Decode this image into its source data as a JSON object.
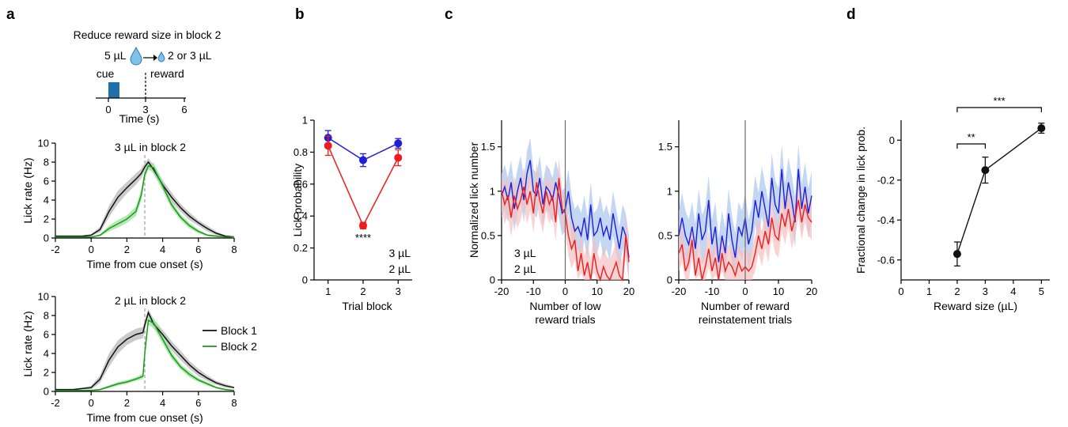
{
  "panel_letters": [
    "a",
    "b",
    "c",
    "d"
  ],
  "colors": {
    "black": "#111111",
    "green": "#1a9a1a",
    "blue": "#1f1fd6",
    "red": "#ee1c1c",
    "cue_box": "#1f6fad",
    "band_gray": "#bdbdbd",
    "band_green": "#9ee39e",
    "band_blue": "#a9c4ec",
    "band_red": "#f7c1c1"
  },
  "schematic": {
    "title": "Reduce reward size in block 2",
    "from_label": "5 µL",
    "to_label": "2 or 3 µL",
    "cue_label": "cue",
    "reward_label": "reward",
    "xlabel": "Time (s)",
    "ticks": [
      "0",
      "3",
      "6"
    ],
    "icon": "water-drop-icon"
  },
  "chart_data": [
    {
      "id": "a-top",
      "type": "line",
      "title": "3 µL in block 2",
      "title_color": "blue",
      "xlabel": "Time from cue onset (s)",
      "ylabel": "Lick rate (Hz)",
      "xlim": [
        -2,
        8
      ],
      "ylim": [
        0,
        10
      ],
      "xticks": [
        "-2",
        "0",
        "2",
        "4",
        "6",
        "8"
      ],
      "yticks": [
        "0",
        "2",
        "4",
        "6",
        "8",
        "10"
      ],
      "x": [
        -2,
        -1.5,
        -1,
        -0.5,
        0,
        0.5,
        1,
        1.5,
        2,
        2.5,
        2.8,
        3,
        3.2,
        3.5,
        4,
        4.5,
        5,
        5.5,
        6,
        6.5,
        7,
        7.5,
        8
      ],
      "series": [
        {
          "color": "black",
          "band": "band_gray",
          "values": [
            0.2,
            0.2,
            0.2,
            0.2,
            0.3,
            0.9,
            2.8,
            4.3,
            5.3,
            6.2,
            6.8,
            7.5,
            8.0,
            7.2,
            5.6,
            4.3,
            3.2,
            2.3,
            1.6,
            1.0,
            0.5,
            0.2,
            0.1
          ],
          "err": [
            0,
            0.05,
            0.05,
            0.05,
            0.1,
            0.3,
            0.6,
            0.7,
            0.6,
            0.6,
            0.5,
            0.4,
            0.4,
            0.5,
            0.5,
            0.5,
            0.4,
            0.4,
            0.3,
            0.3,
            0.2,
            0.1,
            0.1
          ]
        },
        {
          "color": "green",
          "band": "band_green",
          "values": [
            0.1,
            0.1,
            0.1,
            0.1,
            0.1,
            0.3,
            1.0,
            1.5,
            2.0,
            2.8,
            4.5,
            6.7,
            7.6,
            7.4,
            5.5,
            3.5,
            2.2,
            1.3,
            0.7,
            0.3,
            0.2,
            0.1,
            0.1
          ],
          "err": [
            0,
            0.05,
            0.05,
            0.05,
            0.05,
            0.1,
            0.3,
            0.4,
            0.4,
            0.5,
            0.6,
            0.5,
            0.4,
            0.5,
            0.5,
            0.4,
            0.3,
            0.3,
            0.2,
            0.1,
            0.1,
            0.05,
            0.05
          ]
        }
      ]
    },
    {
      "id": "a-bottom",
      "type": "line",
      "title": "2 µL in block 2",
      "title_color": "red",
      "xlabel": "Time from cue onset (s)",
      "ylabel": "Lick rate (Hz)",
      "xlim": [
        -2,
        8
      ],
      "ylim": [
        0,
        10
      ],
      "xticks": [
        "-2",
        "0",
        "2",
        "4",
        "6",
        "8"
      ],
      "yticks": [
        "0",
        "2",
        "4",
        "6",
        "8",
        "10"
      ],
      "legend": [
        {
          "label": "Block 1",
          "color": "black"
        },
        {
          "label": "Block 2",
          "color": "green"
        }
      ],
      "x": [
        -2,
        -1.5,
        -1,
        -0.5,
        0,
        0.5,
        1,
        1.5,
        2,
        2.5,
        2.9,
        3.0,
        3.2,
        3.5,
        4,
        4.5,
        5,
        5.5,
        6,
        6.5,
        7,
        7.5,
        8
      ],
      "series": [
        {
          "color": "black",
          "band": "band_gray",
          "values": [
            0.2,
            0.2,
            0.2,
            0.3,
            0.4,
            1.3,
            3.3,
            4.7,
            5.5,
            6.0,
            6.2,
            7.0,
            8.3,
            7.1,
            6.0,
            4.8,
            3.8,
            2.8,
            2.0,
            1.4,
            0.9,
            0.6,
            0.4
          ],
          "err": [
            0,
            0.05,
            0.05,
            0.1,
            0.2,
            0.4,
            0.7,
            0.7,
            0.6,
            0.6,
            0.6,
            0.5,
            0.4,
            0.5,
            0.5,
            0.5,
            0.5,
            0.4,
            0.4,
            0.3,
            0.2,
            0.2,
            0.1
          ]
        },
        {
          "color": "green",
          "band": "band_green",
          "values": [
            0.1,
            0.1,
            0.1,
            0.1,
            0.1,
            0.2,
            0.5,
            0.8,
            1.0,
            1.3,
            1.6,
            4.0,
            7.5,
            7.2,
            5.5,
            3.8,
            2.6,
            1.8,
            1.2,
            0.8,
            0.4,
            0.2,
            0.1
          ],
          "err": [
            0,
            0.02,
            0.02,
            0.02,
            0.05,
            0.1,
            0.15,
            0.2,
            0.2,
            0.2,
            0.3,
            0.5,
            0.5,
            0.5,
            0.5,
            0.4,
            0.3,
            0.3,
            0.2,
            0.2,
            0.1,
            0.1,
            0.05
          ]
        }
      ]
    },
    {
      "id": "b",
      "type": "line",
      "xlabel": "Trial block",
      "ylabel": "Lick probability",
      "xlim": [
        0.6,
        3.4
      ],
      "ylim": [
        0,
        1
      ],
      "categories": [
        "1",
        "2",
        "3"
      ],
      "yticks": [
        "0",
        "0.2",
        "0.4",
        "0.6",
        "0.8",
        "1"
      ],
      "series": [
        {
          "name": "3 µL",
          "color": "blue",
          "values": [
            0.89,
            0.75,
            0.855
          ],
          "err": [
            0.045,
            0.04,
            0.03
          ]
        },
        {
          "name": "2 µL",
          "color": "red",
          "values": [
            0.84,
            0.34,
            0.765
          ],
          "err": [
            0.06,
            0.02,
            0.05
          ]
        }
      ],
      "annotation": "****"
    },
    {
      "id": "c-left",
      "type": "line",
      "xlabel": "Number of low\nreward trials",
      "ylabel": "Normalized lick number",
      "xlim": [
        -20,
        20
      ],
      "ylim": [
        0,
        1.8
      ],
      "xticks": [
        "-20",
        "-10",
        "0",
        "10",
        "20"
      ],
      "yticks": [
        "0",
        "0.5",
        "1",
        "1.5"
      ],
      "series": [
        {
          "name": "3 µL",
          "color": "blue",
          "band": "band_blue",
          "values": [
            0.95,
            1.05,
            0.9,
            1.1,
            0.8,
            1.0,
            1.15,
            0.9,
            1.2,
            1.35,
            1.0,
            0.95,
            1.15,
            0.85,
            1.05,
            1.0,
            0.9,
            1.1,
            0.95,
            0.75,
            0.8,
            1.0,
            0.7,
            0.55,
            0.6,
            0.5,
            0.7,
            0.45,
            0.85,
            0.5,
            0.55,
            0.7,
            0.5,
            0.6,
            0.45,
            0.75,
            0.55,
            0.35,
            0.6,
            0.5,
            0.25
          ],
          "err": 0.25
        },
        {
          "name": "2 µL",
          "color": "red",
          "band": "band_red",
          "values": [
            1.0,
            0.85,
            0.95,
            0.7,
            0.95,
            0.8,
            0.9,
            1.05,
            0.85,
            1.0,
            0.75,
            1.1,
            0.9,
            0.75,
            1.0,
            0.85,
            0.95,
            0.65,
            1.15,
            0.8,
            0.75,
            0.5,
            0.35,
            0.45,
            0.1,
            0.3,
            0.05,
            0.2,
            0.0,
            0.3,
            0.1,
            0.0,
            0.15,
            0.05,
            0.0,
            0.1,
            0.2,
            0.05,
            0.0,
            0.5,
            0.2
          ],
          "err": 0.22
        }
      ],
      "divider_x": 0
    },
    {
      "id": "c-right",
      "type": "line",
      "xlabel": "Number of reward\nreinstatement trials",
      "ylabel": "",
      "xlim": [
        -20,
        20
      ],
      "ylim": [
        0,
        1.8
      ],
      "xticks": [
        "-20",
        "-10",
        "0",
        "10",
        "20"
      ],
      "yticks": [
        "0",
        "0.5",
        "1",
        "1.5"
      ],
      "series": [
        {
          "color": "blue",
          "band": "band_blue",
          "values": [
            0.5,
            0.7,
            0.5,
            0.4,
            0.6,
            0.35,
            0.75,
            0.45,
            0.55,
            0.9,
            0.4,
            0.6,
            0.2,
            0.5,
            0.3,
            0.75,
            0.45,
            0.25,
            0.6,
            0.5,
            0.7,
            0.4,
            0.55,
            0.9,
            0.7,
            1.0,
            0.8,
            0.6,
            1.15,
            0.85,
            0.75,
            1.25,
            0.8,
            1.1,
            0.9,
            0.65,
            1.25,
            0.8,
            1.05,
            0.75,
            0.95
          ],
          "err": 0.28
        },
        {
          "color": "red",
          "band": "band_red",
          "values": [
            0.3,
            0.4,
            0.1,
            0.2,
            0.45,
            0.05,
            0.25,
            0.0,
            0.15,
            0.35,
            0.1,
            0.25,
            0.0,
            0.3,
            0.1,
            0.2,
            0.15,
            0.05,
            0.2,
            0.1,
            0.15,
            0.1,
            0.15,
            0.3,
            0.5,
            0.35,
            0.55,
            0.4,
            0.7,
            0.5,
            0.45,
            0.75,
            0.6,
            0.8,
            0.55,
            0.7,
            0.9,
            0.65,
            0.85,
            0.7,
            0.65
          ],
          "err": 0.2
        }
      ],
      "divider_x": 0
    },
    {
      "id": "d",
      "type": "line",
      "xlabel": "Reward size (µL)",
      "ylabel": "Fractional change in lick prob.",
      "xlim": [
        0,
        5.3
      ],
      "ylim": [
        -0.7,
        0.1
      ],
      "xticks": [
        "0",
        "1",
        "2",
        "3",
        "4",
        "5"
      ],
      "yticks": [
        "-0.6",
        "-0.4",
        "-0.2",
        "0"
      ],
      "series": [
        {
          "color": "black",
          "x": [
            2,
            3,
            5
          ],
          "values": [
            -0.57,
            -0.15,
            0.06
          ],
          "err": [
            0.06,
            0.065,
            0.025
          ]
        }
      ],
      "significance": [
        {
          "from": 2,
          "to": 3,
          "label": "**"
        },
        {
          "from": 2,
          "to": 5,
          "label": "***"
        }
      ]
    }
  ]
}
